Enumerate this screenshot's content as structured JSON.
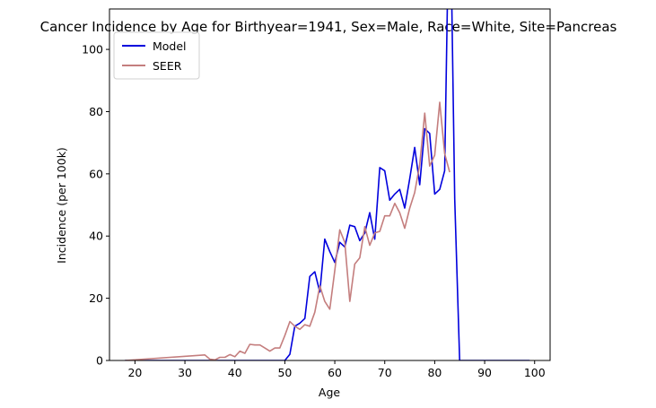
{
  "chart_data": {
    "type": "line",
    "title": "Cancer Incidence by Age for Birthyear=1941, Sex=Male, Race=White, Site=Pancreas",
    "xlabel": "Age",
    "ylabel": "Incidence (per 100k)",
    "xlim": [
      14.9,
      103.1
    ],
    "ylim": [
      0,
      113
    ],
    "xticks": [
      20,
      30,
      40,
      50,
      60,
      70,
      80,
      90,
      100
    ],
    "yticks": [
      0,
      20,
      40,
      60,
      80,
      100
    ],
    "grid": false,
    "legend": {
      "placement": "top-left"
    },
    "series": [
      {
        "name": "Model",
        "color": "#0000dd",
        "x": [
          18,
          19,
          20,
          21,
          22,
          23,
          24,
          25,
          26,
          27,
          28,
          29,
          30,
          31,
          32,
          33,
          34,
          35,
          36,
          37,
          38,
          39,
          40,
          41,
          42,
          43,
          44,
          45,
          46,
          47,
          48,
          49,
          50,
          51,
          52,
          53,
          54,
          55,
          56,
          57,
          58,
          59,
          60,
          61,
          62,
          63,
          64,
          65,
          66,
          67,
          68,
          69,
          70,
          71,
          72,
          73,
          74,
          75,
          76,
          77,
          78,
          79,
          80,
          81,
          82,
          83,
          84,
          85,
          86,
          87,
          88,
          89,
          90,
          91,
          92,
          93,
          94,
          95,
          96,
          97,
          98,
          99
        ],
        "values": [
          0,
          0,
          0,
          0,
          0,
          0,
          0,
          0,
          0,
          0,
          0,
          0,
          0,
          0,
          0,
          0,
          0,
          0,
          0,
          0,
          0,
          0,
          0,
          0,
          0,
          0,
          0,
          0,
          0,
          0,
          0,
          0,
          0,
          2,
          11,
          12,
          13.5,
          27,
          28.5,
          22,
          39,
          35,
          31.5,
          38,
          36.5,
          43.5,
          43,
          38.5,
          41,
          47.5,
          39,
          62,
          61,
          51.5,
          53.5,
          55,
          49,
          58.5,
          68.5,
          56.5,
          74.5,
          73,
          53.5,
          55,
          61,
          160,
          52,
          0,
          0,
          0,
          0,
          0,
          0,
          0,
          0,
          0,
          0,
          0,
          0,
          0,
          0,
          0
        ]
      },
      {
        "name": "SEER",
        "color": "#c47e7e",
        "x": [
          18,
          34,
          35,
          36,
          37,
          38,
          39,
          40,
          41,
          42,
          43,
          44,
          45,
          46,
          47,
          48,
          49,
          50,
          51,
          52,
          53,
          54,
          55,
          56,
          57,
          58,
          59,
          60,
          61,
          62,
          63,
          64,
          65,
          66,
          67,
          68,
          69,
          70,
          71,
          72,
          73,
          74,
          75,
          76,
          77,
          78,
          79,
          80,
          81,
          82,
          83
        ],
        "values": [
          0,
          1.8,
          0.4,
          0.2,
          1,
          1,
          1.9,
          1.2,
          3,
          2.3,
          5.2,
          5,
          5,
          4,
          3,
          4,
          4,
          8,
          12.5,
          11,
          10,
          11.5,
          11,
          15.5,
          24,
          19,
          16.5,
          29,
          42,
          38,
          19,
          31,
          33,
          43,
          37,
          41,
          41.5,
          46.5,
          46.5,
          50.5,
          47.5,
          42.5,
          49,
          54,
          63,
          79.5,
          62.5,
          66,
          83,
          66.5,
          60.5
        ]
      }
    ]
  }
}
